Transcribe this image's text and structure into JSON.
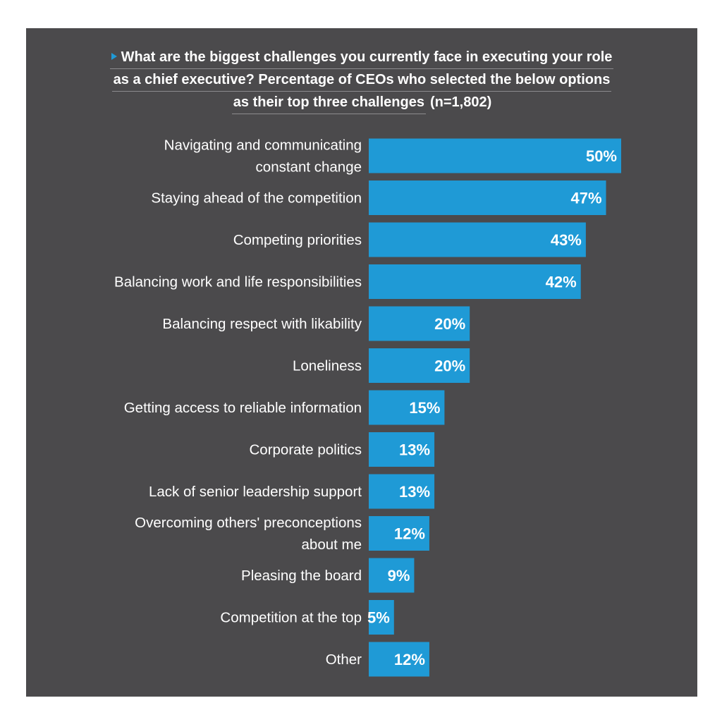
{
  "title": {
    "lines": [
      "What are the biggest challenges you currently face in executing your role",
      "as a chief executive? Percentage of CEOs who selected the below options",
      "as their top three challenges"
    ],
    "sample": "(n=1,802)"
  },
  "colors": {
    "background": "#4b4a4c",
    "bar": "#1f9ad6",
    "text": "#ffffff",
    "accent_arrow": "#1f9ad6"
  },
  "chart_data": {
    "type": "bar",
    "orientation": "horizontal",
    "title": "What are the biggest challenges you currently face in executing your role as a chief executive? Percentage of CEOs who selected the below options as their top three challenges (n=1,802)",
    "categories": [
      "Navigating and communicating constant change",
      "Staying ahead of the competition",
      "Competing priorities",
      "Balancing work and life responsibilities",
      "Balancing respect with likability",
      "Loneliness",
      "Getting access to reliable information",
      "Corporate politics",
      "Lack of senior leadership support",
      "Overcoming others' preconceptions about me",
      "Pleasing the board",
      "Competition at the top",
      "Other"
    ],
    "category_lines": [
      [
        "Navigating and communicating",
        "constant change"
      ],
      [
        "Staying ahead of the competition"
      ],
      [
        "Competing priorities"
      ],
      [
        "Balancing work and life responsibilities"
      ],
      [
        "Balancing respect with likability"
      ],
      [
        "Loneliness"
      ],
      [
        "Getting access to reliable information"
      ],
      [
        "Corporate politics"
      ],
      [
        "Lack of senior leadership support"
      ],
      [
        "Overcoming others' preconceptions",
        "about me"
      ],
      [
        "Pleasing the board"
      ],
      [
        "Competition at the top"
      ],
      [
        "Other"
      ]
    ],
    "values": [
      50,
      47,
      43,
      42,
      20,
      20,
      15,
      13,
      13,
      12,
      9,
      5,
      12
    ],
    "value_labels": [
      "50%",
      "47%",
      "43%",
      "42%",
      "20%",
      "20%",
      "15%",
      "13%",
      "13%",
      "12%",
      "9%",
      "5%",
      "12%"
    ],
    "unit": "%",
    "xlabel": "",
    "ylabel": "",
    "grid": false,
    "legend": "none"
  }
}
